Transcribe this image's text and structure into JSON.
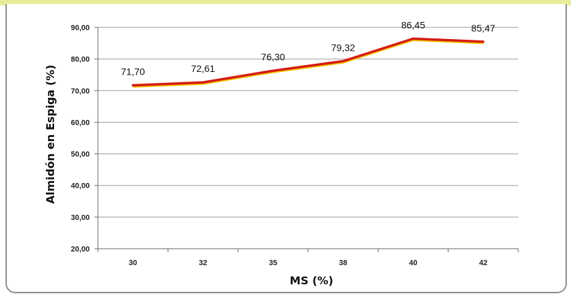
{
  "chart_data": {
    "type": "line",
    "categories": [
      "30",
      "32",
      "35",
      "38",
      "40",
      "42"
    ],
    "series": [
      {
        "values": [
          71.7,
          72.61,
          76.3,
          79.32,
          86.45,
          85.47
        ],
        "color": "#d41c12",
        "shadow_color": "#f2c200"
      }
    ],
    "data_labels": [
      "71,70",
      "72,61",
      "76,30",
      "79,32",
      "86,45",
      "85,47"
    ],
    "xlabel": "MS (%)",
    "ylabel": "Almidón en Espiga (%)",
    "ylim": [
      20,
      90
    ],
    "yticks": [
      20,
      30,
      40,
      50,
      60,
      70,
      80,
      90
    ],
    "ytick_labels": [
      "20,00",
      "30,00",
      "40,00",
      "50,00",
      "60,00",
      "70,00",
      "80,00",
      "90,00"
    ],
    "grid": true,
    "legend": "none"
  }
}
